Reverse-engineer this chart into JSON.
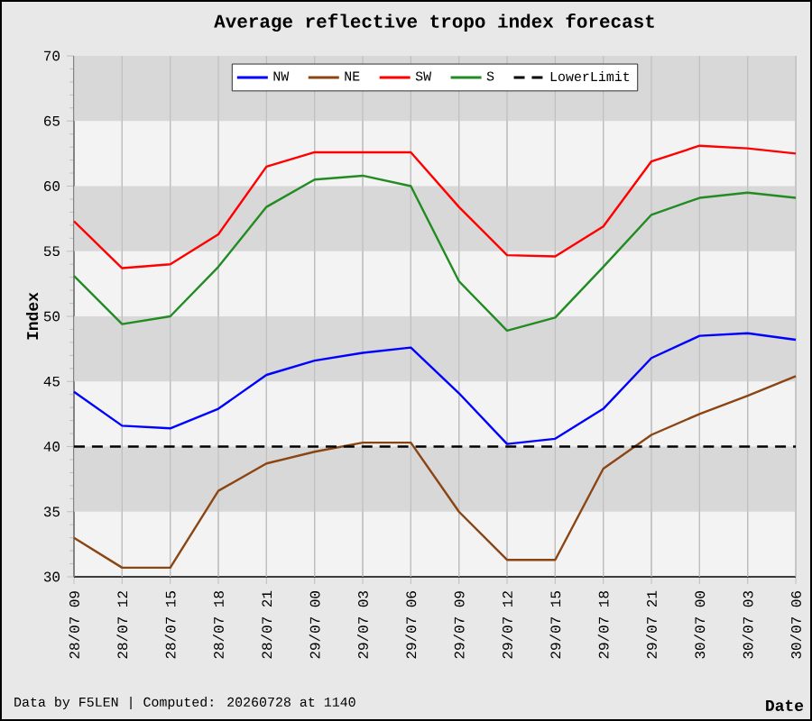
{
  "chart_data": {
    "type": "line",
    "title": "Average reflective tropo index forecast",
    "xlabel": "Date",
    "ylabel": "Index",
    "categories": [
      "28/07 09",
      "28/07 12",
      "28/07 15",
      "28/07 18",
      "28/07 21",
      "29/07 00",
      "29/07 03",
      "29/07 06",
      "29/07 09",
      "29/07 12",
      "29/07 15",
      "29/07 18",
      "29/07 21",
      "30/07 00",
      "30/07 03",
      "30/07 06"
    ],
    "series": [
      {
        "name": "NW",
        "color": "#0000ff",
        "values": [
          44.2,
          41.6,
          41.4,
          42.9,
          45.5,
          46.6,
          47.2,
          47.6,
          44.1,
          40.2,
          40.6,
          42.9,
          46.8,
          48.5,
          48.7,
          48.2
        ]
      },
      {
        "name": "NE",
        "color": "#8b4513",
        "values": [
          33.0,
          30.7,
          30.7,
          36.6,
          38.7,
          39.6,
          40.3,
          40.3,
          35.0,
          31.3,
          31.3,
          38.3,
          40.9,
          42.5,
          43.9,
          45.4
        ]
      },
      {
        "name": "SW",
        "color": "#ff0000",
        "values": [
          57.3,
          53.7,
          54.0,
          56.3,
          61.5,
          62.6,
          62.6,
          62.6,
          58.4,
          54.7,
          54.6,
          56.9,
          61.9,
          63.1,
          62.9,
          62.5
        ]
      },
      {
        "name": "S",
        "color": "#228b22",
        "values": [
          53.1,
          49.4,
          50.0,
          53.8,
          58.4,
          60.5,
          60.8,
          60.0,
          52.7,
          48.9,
          49.9,
          53.8,
          57.8,
          59.1,
          59.5,
          59.1
        ]
      },
      {
        "name": "LowerLimit",
        "color": "#000000",
        "line_style": "dashed",
        "values": [
          40,
          40,
          40,
          40,
          40,
          40,
          40,
          40,
          40,
          40,
          40,
          40,
          40,
          40,
          40,
          40
        ]
      }
    ],
    "ylim": [
      30,
      70
    ],
    "yticks": [
      30,
      35,
      40,
      45,
      50,
      55,
      60,
      65,
      70
    ],
    "grid": true,
    "legend": "top",
    "marker": "none",
    "annotations": [
      "Data by F5LEN | Computed: 20260728 at 1140"
    ]
  }
}
